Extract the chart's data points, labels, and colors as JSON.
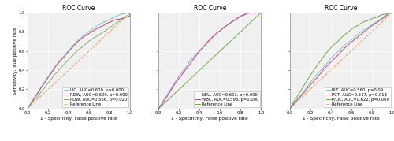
{
  "title": "ROC Curve",
  "xlabel": "1 - Specificity, False positive rate",
  "ylabel": "Sensitivity, True positive rate",
  "panels": [
    {
      "lines": [
        {
          "label": "LIC, AUC=0.600, p=0.000",
          "color": "#7EC8C8",
          "auc": 0.6,
          "lw": 0.7,
          "ls": "-"
        },
        {
          "label": "RDW, AUC=0.609, p=0.000",
          "color": "#C05080",
          "auc": 0.609,
          "lw": 0.7,
          "ls": "-"
        },
        {
          "label": "PDW, AUC=0.556, p=0.020",
          "color": "#8BAF6A",
          "auc": 0.556,
          "lw": 0.7,
          "ls": "-"
        },
        {
          "label": "Reference Line",
          "color": "#E8A060",
          "auc": 0.5,
          "lw": 0.7,
          "ls": "--"
        }
      ]
    },
    {
      "lines": [
        {
          "label": "NEU, AUC=0.603, p=0.000",
          "color": "#9999CC",
          "auc": 0.603,
          "lw": 0.7,
          "ls": "-"
        },
        {
          "label": "WBC, AUC=0.598, p=0.000",
          "color": "#C05080",
          "auc": 0.598,
          "lw": 0.7,
          "ls": "-"
        },
        {
          "label": "Reference Line",
          "color": "#70AD47",
          "auc": 0.5,
          "lw": 0.7,
          "ls": "-"
        }
      ]
    },
    {
      "lines": [
        {
          "label": "PLT, AUC=0.560, p=0.09",
          "color": "#7EC8C8",
          "auc": 0.56,
          "lw": 0.7,
          "ls": "-"
        },
        {
          "label": "PCT, AUC=0.547, p=0.013",
          "color": "#C05080",
          "auc": 0.547,
          "lw": 0.7,
          "ls": "-"
        },
        {
          "label": "P/LIC, AUC=0.622, p=0.000",
          "color": "#70AD47",
          "auc": 0.622,
          "lw": 0.7,
          "ls": "-"
        },
        {
          "label": "Reference Line",
          "color": "#E8A060",
          "auc": 0.5,
          "lw": 0.7,
          "ls": "--"
        }
      ]
    }
  ],
  "panel_bg": "#F0F0F0",
  "grid_color": "#FFFFFF",
  "legend_fontsize": 3.8,
  "axis_fontsize": 4.2,
  "title_fontsize": 5.5,
  "tick_fontsize": 3.8
}
